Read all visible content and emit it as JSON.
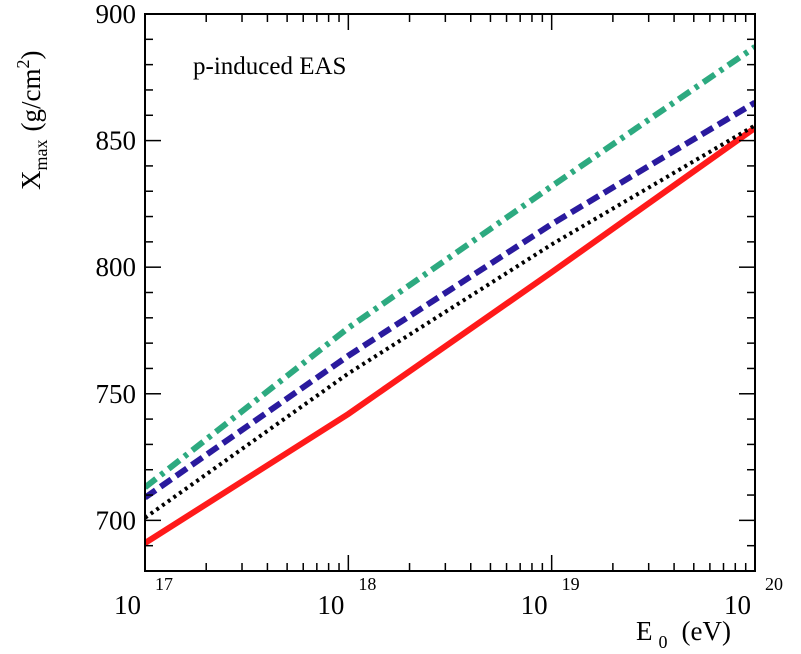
{
  "chart_data": {
    "type": "line",
    "title": "",
    "annotation": "p-induced EAS",
    "xlabel": {
      "main": "E",
      "subscript": "0",
      "unit": "(eV)"
    },
    "ylabel": {
      "main": "X",
      "subscript": "max",
      "unit_before": "(g/cm",
      "unit_sup": "2",
      "unit_after": ")"
    },
    "x_scale": "log",
    "xlim": [
      1e+17,
      1e+20
    ],
    "ylim": [
      680,
      900
    ],
    "x_ticks": [
      {
        "value": 1e+17,
        "base": "10",
        "exp": "17"
      },
      {
        "value": 1e+18,
        "base": "10",
        "exp": "18"
      },
      {
        "value": 1e+19,
        "base": "10",
        "exp": "19"
      },
      {
        "value": 1e+20,
        "base": "10",
        "exp": "20"
      }
    ],
    "y_ticks": [
      {
        "value": 700,
        "label": "700"
      },
      {
        "value": 750,
        "label": "750"
      },
      {
        "value": 800,
        "label": "800"
      },
      {
        "value": 850,
        "label": "850"
      },
      {
        "value": 900,
        "label": "900"
      }
    ],
    "grid": false,
    "series": [
      {
        "style": "solid",
        "color": "#ff1a1a",
        "x": [
          1e+17,
          1e+18,
          1e+19,
          1e+20
        ],
        "y": [
          691,
          742,
          798,
          855
        ]
      },
      {
        "style": "dotted",
        "color": "#000000",
        "x": [
          1e+17,
          1e+18,
          1e+19,
          1e+20
        ],
        "y": [
          701,
          758,
          809,
          856
        ]
      },
      {
        "style": "dashed",
        "color": "#2a1a9e",
        "x": [
          1e+17,
          1e+18,
          1e+19,
          1e+20
        ],
        "y": [
          709,
          765,
          817,
          865
        ]
      },
      {
        "style": "dashdot",
        "color": "#2daa80",
        "x": [
          1e+17,
          1e+18,
          1e+19,
          1e+20
        ],
        "y": [
          713,
          776,
          832,
          887
        ]
      }
    ]
  }
}
